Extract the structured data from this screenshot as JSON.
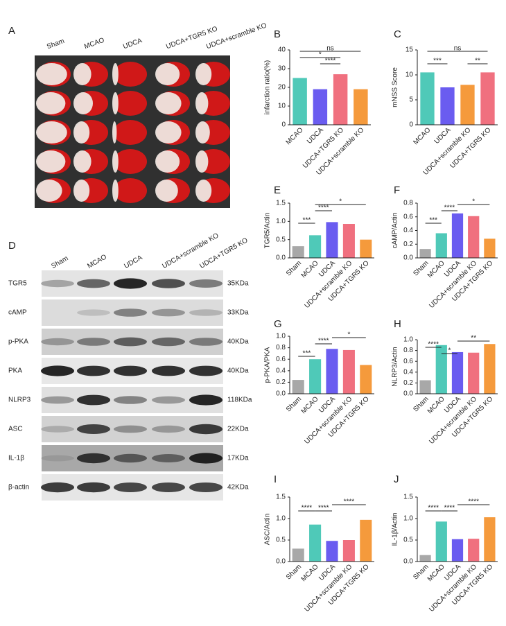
{
  "panel_a": {
    "letter": "A",
    "columns": [
      "Sham",
      "MCAO",
      "UDCA",
      "UDCA+TGR5 KO",
      "UDCA+scramble KO"
    ]
  },
  "panel_d": {
    "letter": "D",
    "lanes": [
      "Sham",
      "MCAO",
      "UDCA",
      "UDCA+scramble KO",
      "UDCA+TGR5 KO"
    ],
    "rows": [
      {
        "protein": "TGR5",
        "size": "35KDa"
      },
      {
        "protein": "cAMP",
        "size": "33KDa"
      },
      {
        "protein": "p-PKA",
        "size": "40KDa"
      },
      {
        "protein": "PKA",
        "size": "40KDa"
      },
      {
        "protein": "NLRP3",
        "size": "118KDa"
      },
      {
        "protein": "ASC",
        "size": "22KDa"
      },
      {
        "protein": "IL-1β",
        "size": "17KDa"
      },
      {
        "protein": "β-actin",
        "size": "42KDa"
      }
    ]
  },
  "chart_data": [
    {
      "type": "bar",
      "panel": "B",
      "y_label": "infarction ratio(%)",
      "categories": [
        "MCAO",
        "UDCA",
        "UDCA+TGR5 KO",
        "UDCA+scramble KO"
      ],
      "values": [
        25,
        19,
        27,
        19
      ],
      "colors": [
        "#4fc9b8",
        "#6a5cf0",
        "#f0707f",
        "#f59a3c"
      ],
      "ylim": [
        0,
        40
      ],
      "yticks": [
        0,
        10,
        20,
        30,
        40
      ],
      "annotations": [
        "ns",
        "*",
        "****"
      ]
    },
    {
      "type": "bar",
      "panel": "C",
      "y_label": "mNSS Score",
      "categories": [
        "MCAO",
        "UDCA",
        "UDCA+scramble KO",
        "UDCA+TGR5 KO"
      ],
      "values": [
        10.5,
        7.5,
        8,
        10.5
      ],
      "colors": [
        "#4fc9b8",
        "#6a5cf0",
        "#f59a3c",
        "#f0707f"
      ],
      "ylim": [
        0,
        15
      ],
      "yticks": [
        0,
        5,
        10,
        15
      ],
      "annotations": [
        "ns",
        "***",
        "**"
      ]
    },
    {
      "type": "bar",
      "panel": "E",
      "y_label": "TGR5/Actin",
      "categories": [
        "Sham",
        "MCAO",
        "UDCA",
        "UDCA+scramble KO",
        "UDCA+TGR5 KO"
      ],
      "values": [
        0.32,
        0.62,
        0.98,
        0.93,
        0.5
      ],
      "colors": [
        "#a8a8a8",
        "#4fc9b8",
        "#6a5cf0",
        "#f0707f",
        "#f59a3c"
      ],
      "ylim": [
        0,
        1.5
      ],
      "yticks": [
        {
          "value": 0,
          "label": "0.0"
        },
        0.5,
        {
          "value": 1,
          "label": "1.0"
        },
        1.5
      ],
      "annotations": [
        "***",
        "****",
        "*"
      ]
    },
    {
      "type": "bar",
      "panel": "F",
      "y_label": "cAMP/Actin",
      "categories": [
        "Sham",
        "MCAO",
        "UDCA",
        "UDCA+scramble KO",
        "UDCA+TGR5 KO"
      ],
      "values": [
        0.13,
        0.36,
        0.65,
        0.61,
        0.28
      ],
      "colors": [
        "#a8a8a8",
        "#4fc9b8",
        "#6a5cf0",
        "#f0707f",
        "#f59a3c"
      ],
      "ylim": [
        0,
        0.8
      ],
      "yticks": [
        {
          "value": 0,
          "label": "0.0"
        },
        0.2,
        0.4,
        0.6,
        0.8
      ],
      "annotations": [
        "***",
        "****",
        "*"
      ]
    },
    {
      "type": "bar",
      "panel": "G",
      "y_label": "p-PKA/PKA",
      "categories": [
        "Sham",
        "MCAO",
        "UDCA",
        "UDCA+scramble KO",
        "UDCA+TGR5 KO"
      ],
      "values": [
        0.24,
        0.6,
        0.78,
        0.76,
        0.5
      ],
      "colors": [
        "#a8a8a8",
        "#4fc9b8",
        "#6a5cf0",
        "#f0707f",
        "#f59a3c"
      ],
      "ylim": [
        0,
        1
      ],
      "yticks": [
        {
          "value": 0,
          "label": "0.0"
        },
        0.2,
        0.4,
        0.6,
        0.8,
        {
          "value": 1,
          "label": "1.0"
        }
      ],
      "annotations": [
        "***",
        "****",
        "*"
      ]
    },
    {
      "type": "bar",
      "panel": "H",
      "y_label": "NLRP3/Actin",
      "categories": [
        "Sham",
        "MCAO",
        "UDCA",
        "UDCA+scramble KO",
        "UDCA+TGR5 KO"
      ],
      "values": [
        0.25,
        0.9,
        0.77,
        0.76,
        0.92
      ],
      "colors": [
        "#a8a8a8",
        "#4fc9b8",
        "#6a5cf0",
        "#f0707f",
        "#f59a3c"
      ],
      "ylim": [
        0,
        1
      ],
      "yticks": [
        {
          "value": 0,
          "label": "0.0"
        },
        0.2,
        0.4,
        0.6,
        0.8,
        {
          "value": 1,
          "label": "1.0"
        }
      ],
      "annotations": [
        "****",
        "*",
        "**"
      ]
    },
    {
      "type": "bar",
      "panel": "I",
      "y_label": "ASC/Actin",
      "categories": [
        "Sham",
        "MCAO",
        "UDCA",
        "UDCA+scramble KO",
        "UDCA+TGR5 KO"
      ],
      "values": [
        0.3,
        0.86,
        0.48,
        0.5,
        0.97
      ],
      "colors": [
        "#a8a8a8",
        "#4fc9b8",
        "#6a5cf0",
        "#f0707f",
        "#f59a3c"
      ],
      "ylim": [
        0,
        1.5
      ],
      "yticks": [
        {
          "value": 0,
          "label": "0.0"
        },
        0.5,
        {
          "value": 1,
          "label": "1.0"
        },
        1.5
      ],
      "annotations": [
        "****",
        "****",
        "****"
      ]
    },
    {
      "type": "bar",
      "panel": "J",
      "y_label": "IL-1β/Actin",
      "categories": [
        "Sham",
        "MCAO",
        "UDCA",
        "UDCA+scramble KO",
        "UDCA+TGR5 KO"
      ],
      "values": [
        0.15,
        0.93,
        0.52,
        0.53,
        1.03
      ],
      "colors": [
        "#a8a8a8",
        "#4fc9b8",
        "#6a5cf0",
        "#f0707f",
        "#f59a3c"
      ],
      "ylim": [
        0,
        1.5
      ],
      "yticks": [
        {
          "value": 0,
          "label": "0.0"
        },
        0.5,
        {
          "value": 1,
          "label": "1.0"
        },
        1.5
      ],
      "annotations": [
        "****",
        "****",
        "****"
      ]
    }
  ]
}
